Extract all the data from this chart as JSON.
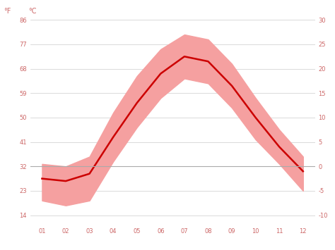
{
  "months": [
    1,
    2,
    3,
    4,
    5,
    6,
    7,
    8,
    9,
    10,
    11,
    12
  ],
  "month_labels": [
    "01",
    "02",
    "03",
    "04",
    "05",
    "06",
    "07",
    "08",
    "09",
    "10",
    "11",
    "12"
  ],
  "avg_temp": [
    -2.5,
    -3.0,
    -1.5,
    6.0,
    13.0,
    19.0,
    22.5,
    21.5,
    16.5,
    10.0,
    4.0,
    -1.0
  ],
  "temp_max": [
    0.5,
    0.0,
    2.0,
    11.0,
    18.5,
    24.0,
    27.0,
    26.0,
    21.0,
    14.0,
    7.5,
    2.0
  ],
  "temp_min": [
    -7.0,
    -8.0,
    -7.0,
    1.0,
    8.0,
    14.0,
    18.0,
    17.0,
    12.0,
    5.5,
    0.5,
    -5.0
  ],
  "ymin": -12,
  "ymax": 31,
  "line_color": "#cc0000",
  "band_color": "#f5a0a0",
  "grid_color": "#cccccc",
  "zero_line_color": "#aaaaaa",
  "background_color": "#ffffff",
  "left_yticks_f": [
    86,
    77,
    68,
    59,
    50,
    41,
    32,
    23,
    14
  ],
  "left_yticks_c": [
    30,
    25,
    20,
    15,
    10,
    5,
    0,
    -5,
    -10
  ],
  "right_yticks_c": [
    30,
    25,
    20,
    15,
    10,
    5,
    0,
    -5,
    -10
  ],
  "label_f": "°F",
  "label_c": "°C",
  "tick_color": "#cc6666",
  "tick_fontsize": 6
}
